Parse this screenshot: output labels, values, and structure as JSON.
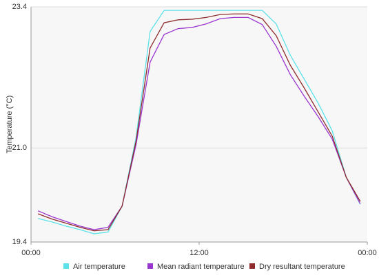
{
  "chart_data": {
    "type": "line",
    "y_label": "Temperature (°C)",
    "x": [
      0.5,
      1.5,
      2.5,
      3.5,
      4.5,
      5.5,
      6.5,
      7.5,
      8.5,
      9.5,
      10.5,
      11.5,
      12.5,
      13.5,
      14.5,
      15.5,
      16.5,
      17.5,
      18.5,
      19.5,
      20.5,
      21.5,
      22.5,
      23.5
    ],
    "xlim": [
      0,
      24
    ],
    "xticks": [
      {
        "value": 0,
        "label": "00:00"
      },
      {
        "value": 12,
        "label": "12:00"
      },
      {
        "value": 24,
        "label": "00:00"
      }
    ],
    "ylim": [
      19.4,
      23.4
    ],
    "yticks": [
      19.4,
      {
        "value": 21,
        "label": "21.0"
      },
      23.4
    ],
    "grid": true,
    "legend": "bottom",
    "series": [
      {
        "name": "Air temperature",
        "color": "#5ce1ea",
        "values": [
          19.8,
          19.74,
          19.67,
          19.61,
          19.54,
          19.57,
          20.01,
          21.18,
          22.98,
          23.34,
          23.34,
          23.34,
          23.34,
          23.34,
          23.34,
          23.34,
          23.34,
          23.11,
          22.58,
          22.17,
          21.76,
          21.29,
          20.5,
          20.04
        ]
      },
      {
        "name": "Mean radiant temperature",
        "color": "#9b35cf",
        "values": [
          19.93,
          19.83,
          19.75,
          19.67,
          19.61,
          19.65,
          20.01,
          21.06,
          22.46,
          22.93,
          23.03,
          23.05,
          23.11,
          23.2,
          23.22,
          23.22,
          23.1,
          22.73,
          22.25,
          21.88,
          21.53,
          21.15,
          20.5,
          20.05
        ]
      },
      {
        "name": "Dry resultant temperature",
        "color": "#8e2b2b",
        "values": [
          19.88,
          19.79,
          19.72,
          19.65,
          19.59,
          19.61,
          20.01,
          21.12,
          22.7,
          23.13,
          23.18,
          23.19,
          23.22,
          23.27,
          23.28,
          23.28,
          23.2,
          22.91,
          22.41,
          22.02,
          21.61,
          21.2,
          20.5,
          20.09
        ]
      }
    ]
  }
}
